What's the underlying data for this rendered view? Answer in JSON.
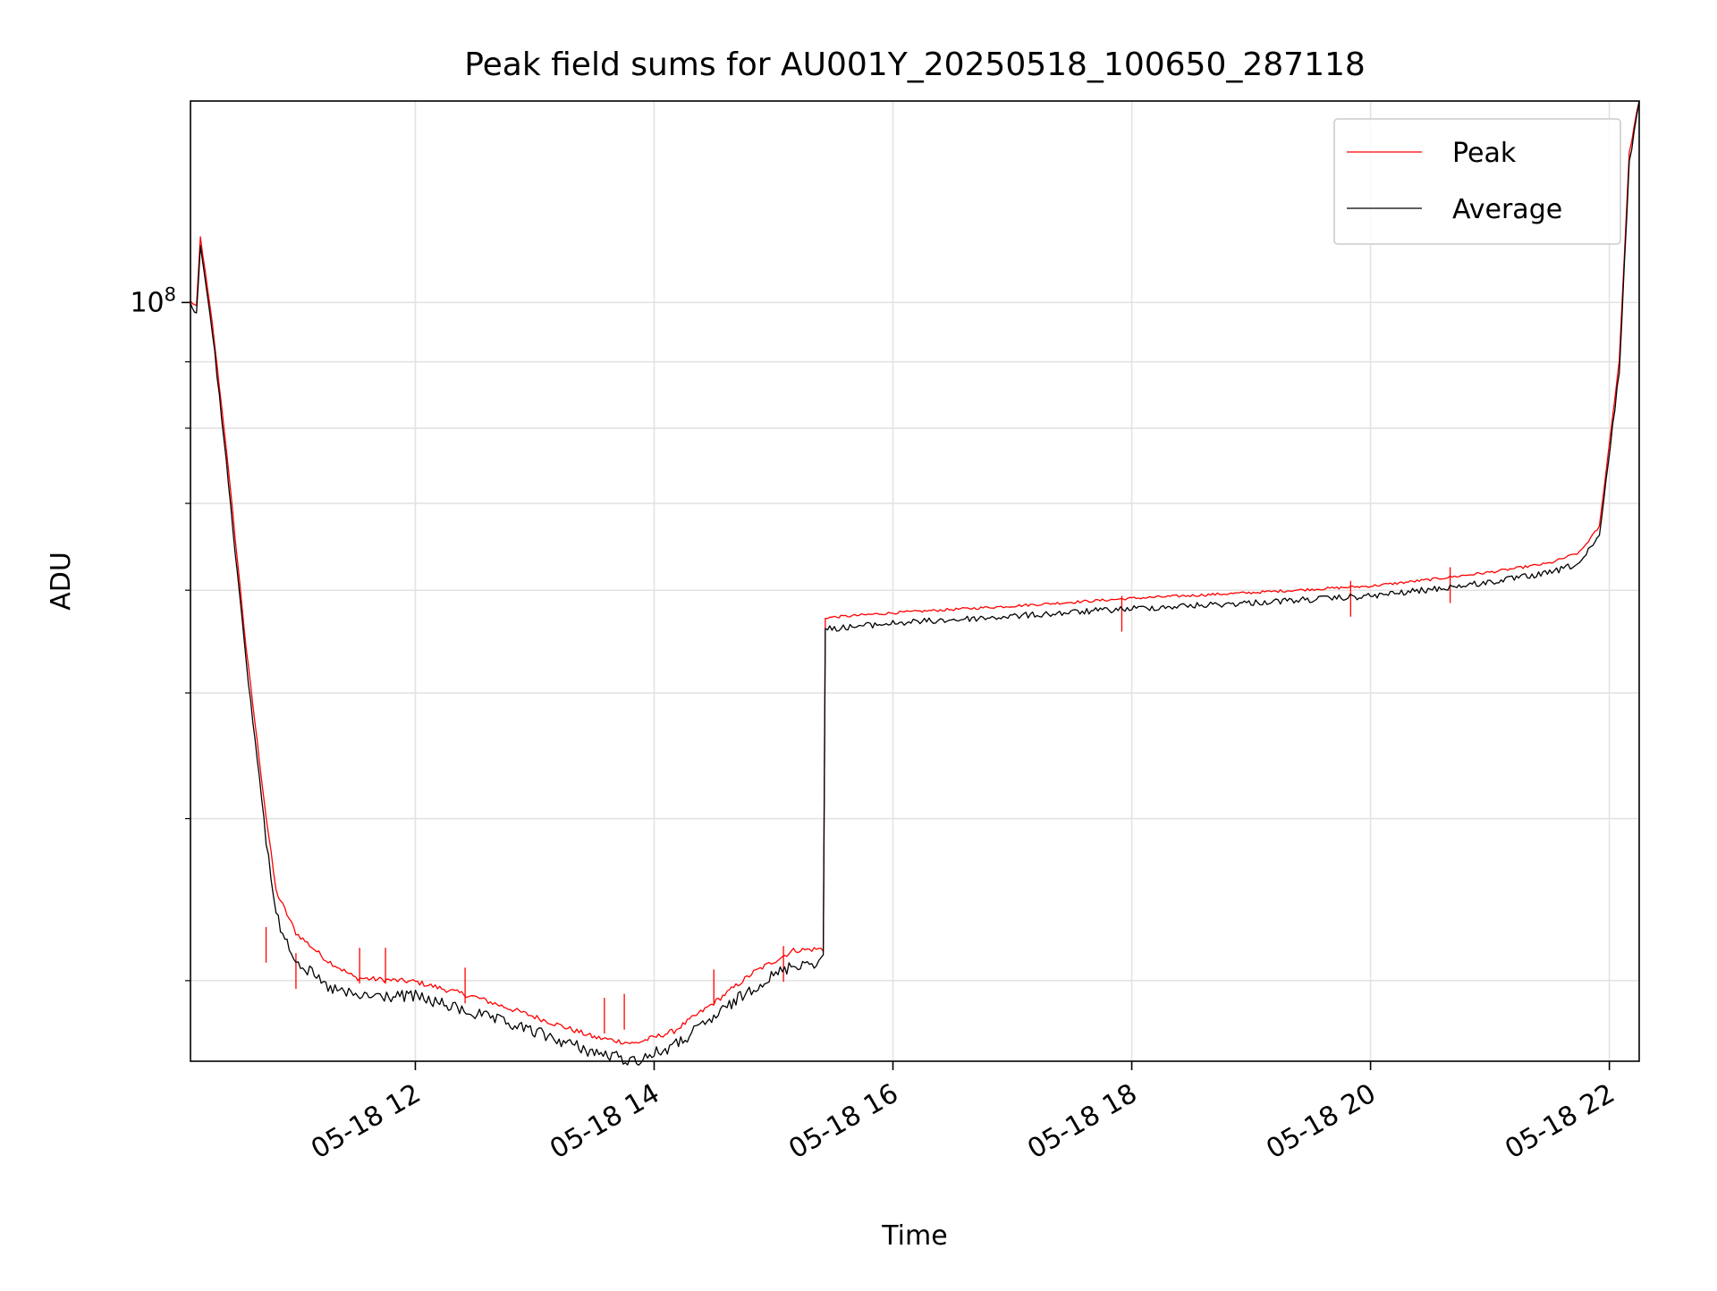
{
  "chart_data": {
    "type": "line",
    "title": "Peak field sums for AU001Y_20250518_100650_287118",
    "xlabel": "Time",
    "ylabel": "ADU",
    "yscale": "log",
    "grid": true,
    "legend_placement": "top-right",
    "xlim": [
      "2025-05-18T10:07",
      "2025-05-18T22:15"
    ],
    "ylim": [
      26000000,
      143000000
    ],
    "x_ticks": [
      {
        "value": "2025-05-18T12:00",
        "label": "05-18 12"
      },
      {
        "value": "2025-05-18T14:00",
        "label": "05-18 14"
      },
      {
        "value": "2025-05-18T16:00",
        "label": "05-18 16"
      },
      {
        "value": "2025-05-18T18:00",
        "label": "05-18 18"
      },
      {
        "value": "2025-05-18T20:00",
        "label": "05-18 20"
      },
      {
        "value": "2025-05-18T22:00",
        "label": "05-18 22"
      }
    ],
    "y_major_ticks": [
      {
        "value": 100000000,
        "label_base": "10",
        "label_exp": "8"
      }
    ],
    "y_minor_ticks": [
      30000000,
      40000000,
      50000000,
      60000000,
      70000000,
      80000000,
      90000000
    ],
    "series": [
      {
        "name": "Peak",
        "color": "#ff0000",
        "x": [
          "2025-05-18T10:07",
          "2025-05-18T10:10",
          "2025-05-18T10:12",
          "2025-05-18T10:18",
          "2025-05-18T10:25",
          "2025-05-18T10:35",
          "2025-05-18T10:45",
          "2025-05-18T10:50",
          "2025-05-18T11:00",
          "2025-05-18T11:15",
          "2025-05-18T11:30",
          "2025-05-18T12:00",
          "2025-05-18T12:30",
          "2025-05-18T13:00",
          "2025-05-18T13:30",
          "2025-05-18T13:50",
          "2025-05-18T14:10",
          "2025-05-18T14:30",
          "2025-05-18T14:50",
          "2025-05-18T15:10",
          "2025-05-18T15:25",
          "2025-05-18T15:26",
          "2025-05-18T16:00",
          "2025-05-18T17:00",
          "2025-05-18T18:00",
          "2025-05-18T19:00",
          "2025-05-18T20:00",
          "2025-05-18T20:30",
          "2025-05-18T21:00",
          "2025-05-18T21:30",
          "2025-05-18T21:45",
          "2025-05-18T21:55",
          "2025-05-18T22:05",
          "2025-05-18T22:10",
          "2025-05-18T22:15"
        ],
        "y": [
          100000000,
          99000000,
          112000000,
          96000000,
          77000000,
          54000000,
          40000000,
          35000000,
          32500000,
          31000000,
          30000000,
          29800000,
          29000000,
          28000000,
          27000000,
          26700000,
          27300000,
          28700000,
          30300000,
          31500000,
          31600000,
          57000000,
          57500000,
          58200000,
          59000000,
          59600000,
          60300000,
          61000000,
          61800000,
          62800000,
          64000000,
          67000000,
          90000000,
          130000000,
          143000000
        ],
        "spikes": [
          {
            "x": "2025-05-18T10:45",
            "y": 33000000
          },
          {
            "x": "2025-05-18T11:00",
            "y": 31500000
          },
          {
            "x": "2025-05-18T11:32",
            "y": 31800000
          },
          {
            "x": "2025-05-18T11:45",
            "y": 31800000
          },
          {
            "x": "2025-05-18T12:25",
            "y": 30700000
          },
          {
            "x": "2025-05-18T13:35",
            "y": 29100000
          },
          {
            "x": "2025-05-18T13:45",
            "y": 29300000
          },
          {
            "x": "2025-05-18T14:30",
            "y": 30600000
          },
          {
            "x": "2025-05-18T15:05",
            "y": 31900000
          },
          {
            "x": "2025-05-18T17:55",
            "y": 59400000
          },
          {
            "x": "2025-05-18T19:50",
            "y": 61000000
          },
          {
            "x": "2025-05-18T20:40",
            "y": 62500000
          }
        ]
      },
      {
        "name": "Average",
        "color": "#000000",
        "x": [
          "2025-05-18T10:07",
          "2025-05-18T10:10",
          "2025-05-18T10:12",
          "2025-05-18T10:18",
          "2025-05-18T10:25",
          "2025-05-18T10:35",
          "2025-05-18T10:45",
          "2025-05-18T10:50",
          "2025-05-18T11:00",
          "2025-05-18T11:15",
          "2025-05-18T11:30",
          "2025-05-18T12:00",
          "2025-05-18T12:30",
          "2025-05-18T13:00",
          "2025-05-18T13:30",
          "2025-05-18T13:50",
          "2025-05-18T14:10",
          "2025-05-18T14:30",
          "2025-05-18T14:50",
          "2025-05-18T15:10",
          "2025-05-18T15:25",
          "2025-05-18T15:26",
          "2025-05-18T16:00",
          "2025-05-18T17:00",
          "2025-05-18T18:00",
          "2025-05-18T19:00",
          "2025-05-18T20:00",
          "2025-05-18T20:30",
          "2025-05-18T21:00",
          "2025-05-18T21:30",
          "2025-05-18T21:45",
          "2025-05-18T21:55",
          "2025-05-18T22:05",
          "2025-05-18T22:10",
          "2025-05-18T22:15"
        ],
        "y": [
          100000000,
          99000000,
          111000000,
          95500000,
          76000000,
          53000000,
          39000000,
          34000000,
          31500000,
          30000000,
          29500000,
          29500000,
          28600000,
          27700000,
          26700000,
          26300000,
          27000000,
          28400000,
          30000000,
          31200000,
          31400000,
          56300000,
          56900000,
          57600000,
          58400000,
          59000000,
          59700000,
          60400000,
          61200000,
          62200000,
          63300000,
          66300000,
          89000000,
          129000000,
          143000000
        ]
      }
    ]
  }
}
